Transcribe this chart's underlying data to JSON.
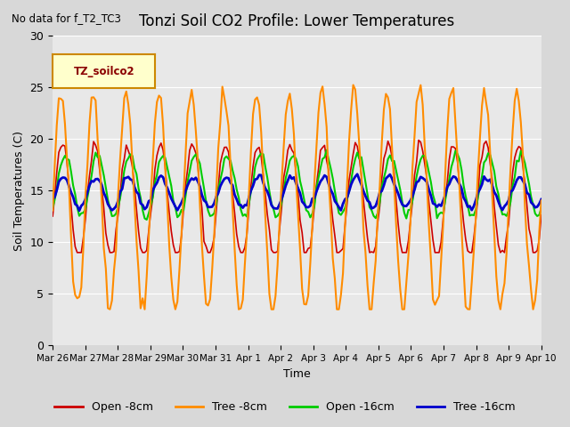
{
  "title": "Tonzi Soil CO2 Profile: Lower Temperatures",
  "subtitle": "No data for f_T2_TC3",
  "ylabel": "Soil Temperatures (C)",
  "xlabel": "Time",
  "legend_label": "TZ_soilco2",
  "ylim": [
    0,
    30
  ],
  "yticks": [
    0,
    5,
    10,
    15,
    20,
    25,
    30
  ],
  "colors": {
    "open_8cm": "#cc0000",
    "tree_8cm": "#ff8c00",
    "open_16cm": "#00cc00",
    "tree_16cm": "#0000cc"
  },
  "legend_entries": [
    "Open -8cm",
    "Tree -8cm",
    "Open -16cm",
    "Tree -16cm"
  ],
  "xtick_labels": [
    "Mar 26",
    "Mar 27",
    "Mar 28",
    "Mar 29",
    "Mar 30",
    "Mar 31",
    "Apr 1",
    "Apr 2",
    "Apr 3",
    "Apr 4",
    "Apr 5",
    "Apr 6",
    "Apr 7",
    "Apr 8",
    "Apr 9",
    "Apr 10"
  ],
  "n_days": 15,
  "pts_per_day": 16
}
